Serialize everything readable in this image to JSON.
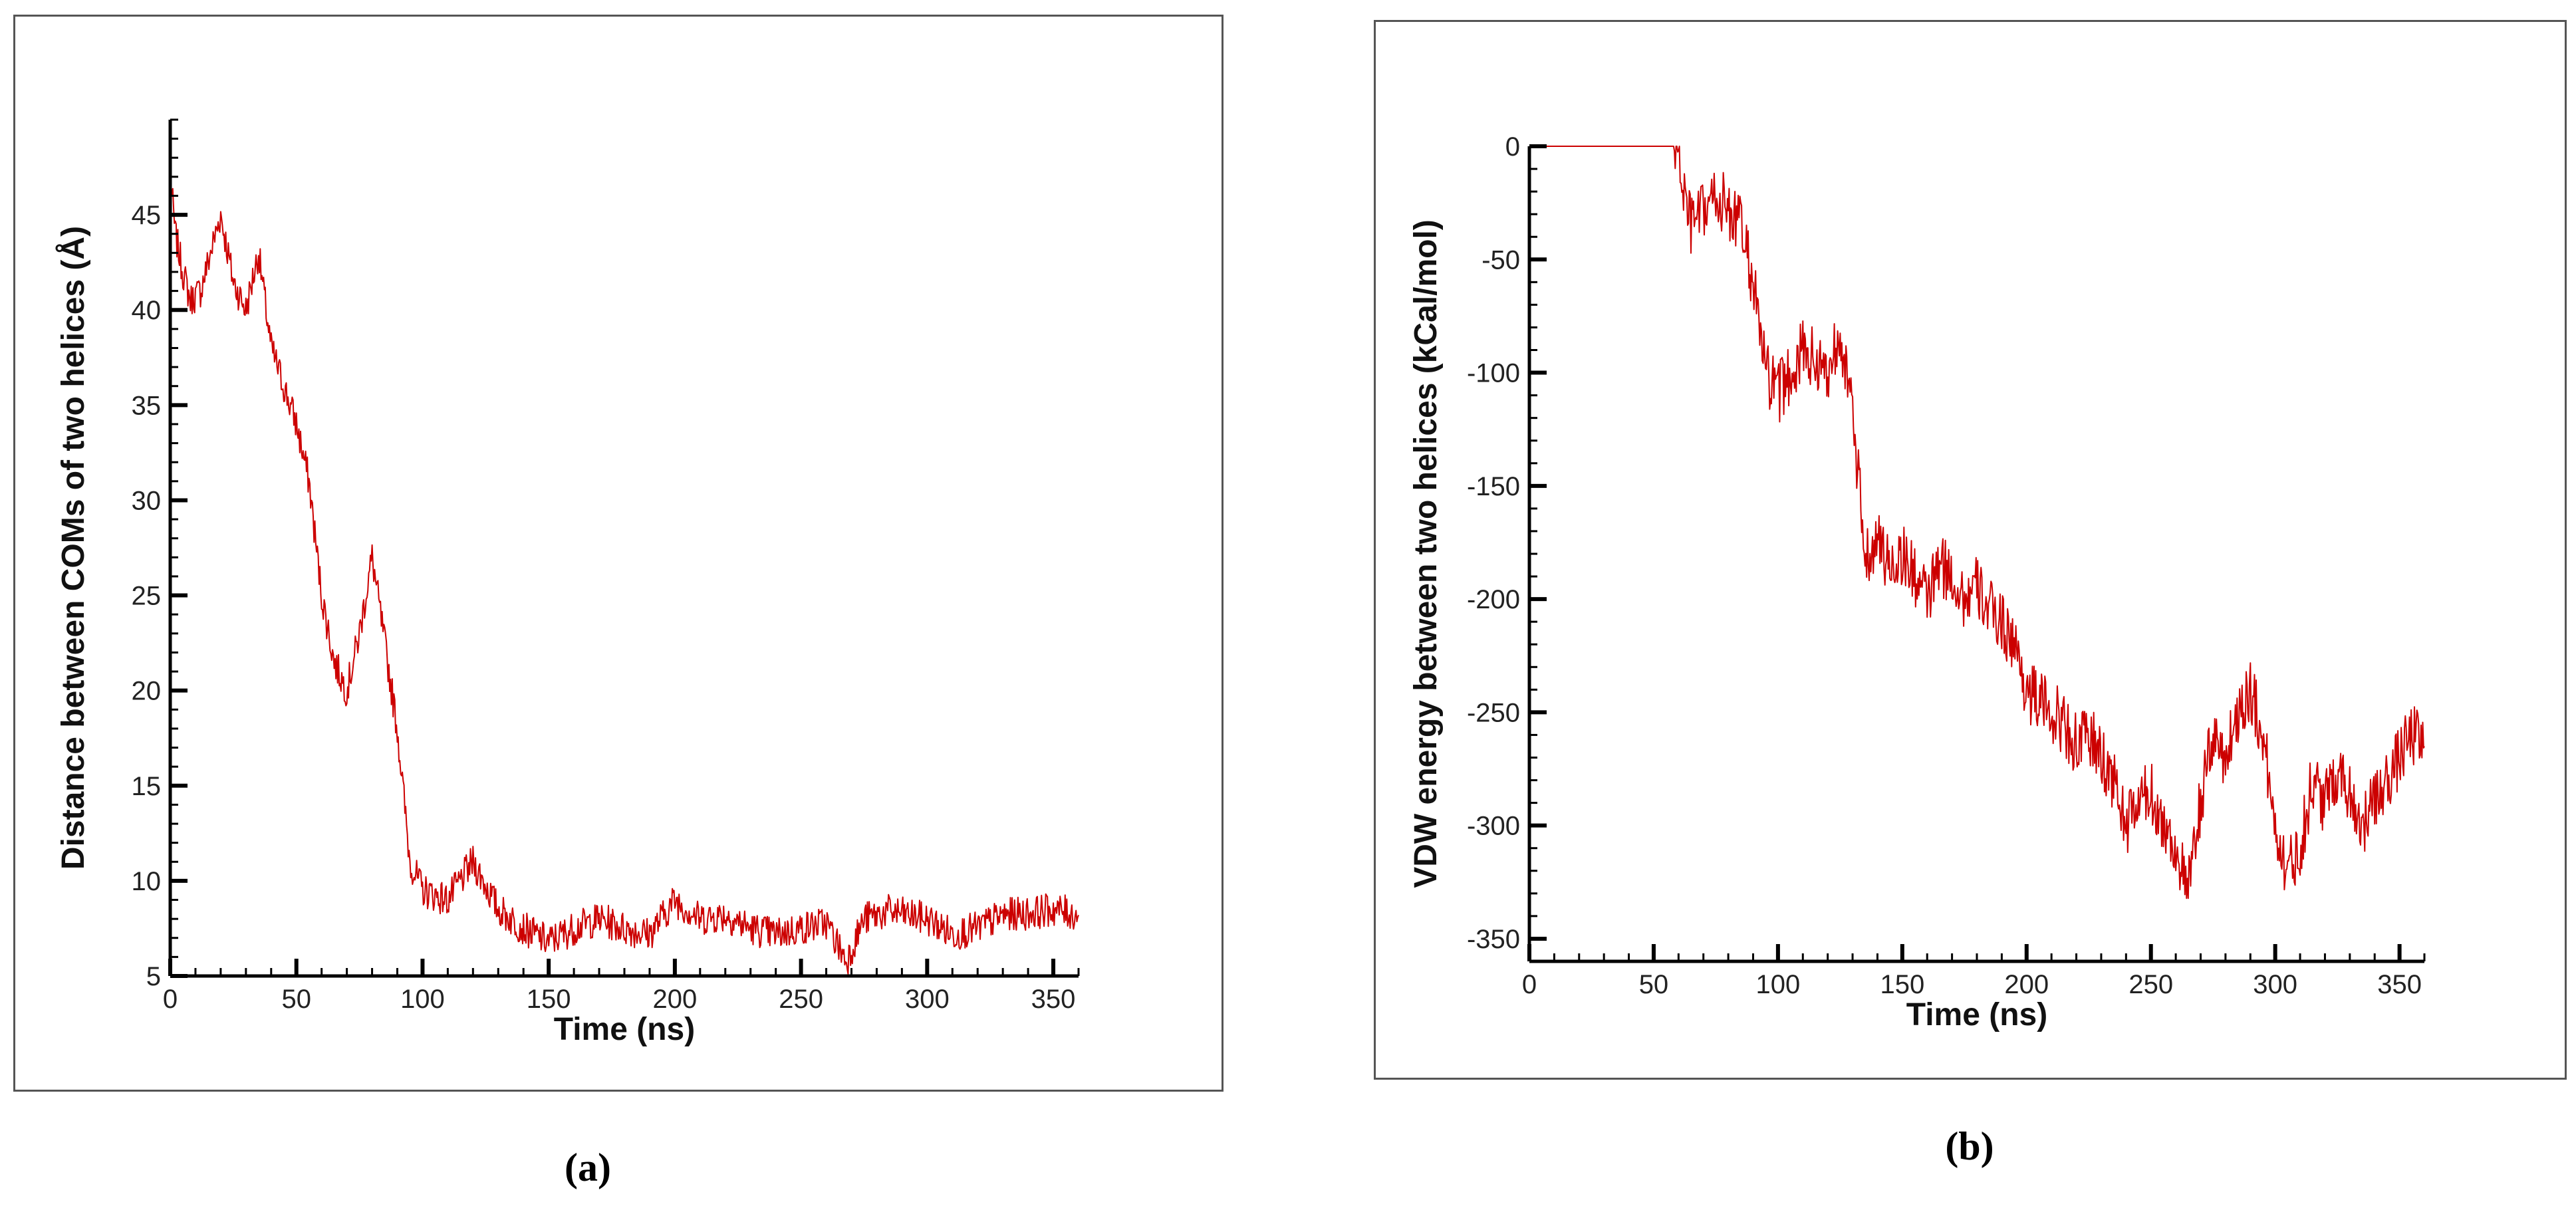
{
  "panels": [
    {
      "label": "(a)"
    },
    {
      "label": "(b)"
    }
  ],
  "chart_data": [
    {
      "type": "line",
      "title": "",
      "xlabel": "Time (ns)",
      "ylabel": "Distance between COMs of two helices (Å)",
      "xlim": [
        0,
        360
      ],
      "ylim": [
        5,
        50
      ],
      "x_ticks": [
        0,
        50,
        100,
        150,
        200,
        250,
        300,
        350
      ],
      "y_ticks": [
        5,
        10,
        15,
        20,
        25,
        30,
        35,
        40,
        45
      ],
      "grid": false,
      "color": "#cc0000",
      "series": [
        {
          "x": [
            0,
            2,
            5,
            8,
            12,
            16,
            20,
            25,
            30,
            35,
            40,
            45,
            50,
            55,
            60,
            65,
            70,
            75,
            80,
            85,
            90,
            95,
            100,
            110,
            120,
            130,
            140,
            150,
            160,
            170,
            180,
            190,
            200,
            210,
            220,
            230,
            240,
            250,
            260,
            268,
            275,
            285,
            300,
            310,
            320,
            330,
            340,
            350,
            360
          ],
          "y": [
            47,
            44,
            42,
            40.5,
            41,
            43,
            45,
            41.5,
            40,
            43,
            38,
            36,
            34,
            31,
            25,
            21.5,
            20,
            23,
            27,
            22.5,
            18,
            11,
            9.5,
            9,
            11,
            8.5,
            7.5,
            6.8,
            7.5,
            8,
            7.5,
            7.2,
            9,
            8,
            8.2,
            7.5,
            7.2,
            7.5,
            7.8,
            5.8,
            8,
            8.4,
            8,
            7.2,
            7.5,
            8.2,
            8.3,
            8.5,
            8.2
          ]
        }
      ]
    },
    {
      "type": "line",
      "title": "",
      "xlabel": "Time (ns)",
      "ylabel": "VDW energy between two helices (kCal/mol)",
      "xlim": [
        0,
        360
      ],
      "ylim": [
        -360,
        0
      ],
      "x_ticks": [
        0,
        50,
        100,
        150,
        200,
        250,
        300,
        350
      ],
      "y_ticks": [
        0,
        -50,
        -100,
        -150,
        -200,
        -250,
        -300,
        -350
      ],
      "grid": false,
      "color": "#cc0000",
      "series": [
        {
          "x": [
            0,
            20,
            40,
            58,
            60,
            62,
            65,
            70,
            75,
            80,
            85,
            90,
            95,
            100,
            105,
            110,
            115,
            120,
            125,
            130,
            135,
            140,
            145,
            150,
            155,
            160,
            165,
            170,
            175,
            180,
            185,
            190,
            195,
            200,
            205,
            210,
            215,
            220,
            225,
            230,
            235,
            240,
            245,
            250,
            255,
            260,
            265,
            270,
            275,
            280,
            285,
            290,
            295,
            300,
            305,
            310,
            315,
            320,
            325,
            330,
            335,
            340,
            345,
            350,
            355,
            360
          ],
          "y": [
            0,
            0,
            0,
            0,
            -2,
            -20,
            -35,
            -30,
            -22,
            -28,
            -35,
            -60,
            -100,
            -110,
            -100,
            -90,
            -95,
            -100,
            -80,
            -120,
            -180,
            -175,
            -185,
            -180,
            -190,
            -200,
            -185,
            -190,
            -200,
            -195,
            -205,
            -210,
            -220,
            -240,
            -245,
            -250,
            -255,
            -265,
            -260,
            -270,
            -280,
            -300,
            -290,
            -285,
            -300,
            -310,
            -330,
            -290,
            -260,
            -270,
            -250,
            -240,
            -260,
            -300,
            -320,
            -310,
            -280,
            -290,
            -275,
            -285,
            -300,
            -290,
            -280,
            -270,
            -260,
            -265
          ]
        }
      ]
    }
  ]
}
